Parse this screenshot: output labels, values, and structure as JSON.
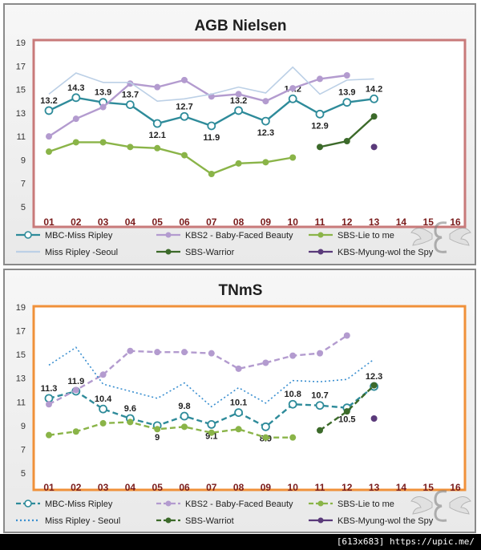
{
  "footer_text": "[613x683] https://upic.me/",
  "colors": {
    "top_frame": "#c87a7a",
    "bottom_frame": "#f0913a",
    "tick_label": "#7a1c1c"
  },
  "chart_data": [
    {
      "type": "line",
      "title": "AGB Nielsen",
      "categories": [
        "01",
        "02",
        "03",
        "04",
        "05",
        "06",
        "07",
        "08",
        "09",
        "10",
        "11",
        "12",
        "13",
        "14",
        "15",
        "16"
      ],
      "ylim": [
        5,
        19
      ],
      "yticks": [
        5,
        7,
        9,
        11,
        13,
        15,
        17,
        19
      ],
      "series": [
        {
          "name": "MBC-Miss Ripley",
          "color": "#2e8b9a",
          "style": "solid",
          "marker": "open-circle",
          "values": [
            13.2,
            14.3,
            13.9,
            13.7,
            12.1,
            12.7,
            11.9,
            13.2,
            12.3,
            14.2,
            12.9,
            13.9,
            14.2,
            null,
            null,
            null
          ],
          "labels": [
            "13.2",
            "14.3",
            "13.9",
            "13.7",
            "12.1",
            "12.7",
            "11.9",
            "13.2",
            "12.3",
            "14.2",
            "12.9",
            "13.9",
            "14.2",
            null,
            null,
            null
          ]
        },
        {
          "name": "KBS2 - Baby-Faced Beauty",
          "color": "#b39bcf",
          "style": "solid",
          "marker": "dot",
          "values": [
            11.0,
            12.5,
            13.5,
            15.5,
            15.2,
            15.8,
            14.4,
            14.6,
            14.0,
            15.1,
            15.9,
            16.2,
            null,
            null,
            null,
            null
          ]
        },
        {
          "name": "SBS-Lie to me",
          "color": "#8ab448",
          "style": "solid",
          "marker": "dot",
          "values": [
            9.7,
            10.5,
            10.5,
            10.1,
            10.0,
            9.4,
            7.8,
            8.7,
            8.8,
            9.2,
            null,
            null,
            null,
            null,
            null,
            null
          ]
        },
        {
          "name": "Miss Ripley -Seoul",
          "color": "#bcd0e6",
          "style": "solid",
          "marker": "none",
          "values": [
            14.6,
            16.4,
            15.6,
            15.6,
            14.0,
            14.2,
            14.6,
            15.2,
            14.7,
            16.9,
            14.6,
            15.8,
            15.9,
            null,
            null,
            null
          ]
        },
        {
          "name": "SBS-Warrior",
          "color": "#3c6a2a",
          "style": "solid",
          "marker": "dot",
          "values": [
            null,
            null,
            null,
            null,
            null,
            null,
            null,
            null,
            null,
            null,
            10.1,
            10.6,
            12.7,
            null,
            null,
            null
          ]
        },
        {
          "name": "KBS-Myung-wol the Spy",
          "color": "#5a3a7a",
          "style": "solid",
          "marker": "dot",
          "values": [
            null,
            null,
            null,
            null,
            null,
            null,
            null,
            null,
            null,
            null,
            null,
            null,
            10.1,
            null,
            null,
            null
          ]
        }
      ]
    },
    {
      "type": "line",
      "title": "TNmS",
      "categories": [
        "01",
        "02",
        "03",
        "04",
        "05",
        "06",
        "07",
        "08",
        "09",
        "10",
        "11",
        "12",
        "13",
        "14",
        "15",
        "16"
      ],
      "ylim": [
        5,
        19
      ],
      "yticks": [
        5,
        7,
        9,
        11,
        13,
        15,
        17,
        19
      ],
      "series": [
        {
          "name": "MBC-Miss Ripley",
          "color": "#2e8b9a",
          "style": "dashed",
          "marker": "open-circle",
          "values": [
            11.3,
            11.9,
            10.4,
            9.6,
            9.0,
            9.8,
            9.1,
            10.1,
            8.9,
            10.8,
            10.7,
            10.5,
            12.3,
            null,
            null,
            null
          ],
          "labels": [
            "11.3",
            "11.9",
            "10.4",
            "9.6",
            "9",
            "9.8",
            "9.1",
            "10.1",
            "8.9",
            "10.8",
            "10.7",
            "10.5",
            "12.3",
            null,
            null,
            null
          ]
        },
        {
          "name": "KBS2 - Baby-Faced Beauty",
          "color": "#b39bcf",
          "style": "dashed",
          "marker": "dot",
          "values": [
            10.8,
            12.0,
            13.3,
            15.3,
            15.2,
            15.2,
            15.1,
            13.8,
            14.3,
            14.9,
            15.1,
            16.6,
            null,
            null,
            null,
            null
          ]
        },
        {
          "name": "SBS-Lie to me",
          "color": "#8ab448",
          "style": "dashed",
          "marker": "dot",
          "values": [
            8.2,
            8.5,
            9.2,
            9.3,
            8.7,
            8.9,
            8.4,
            8.7,
            8.0,
            8.0,
            null,
            null,
            null,
            null,
            null,
            null
          ]
        },
        {
          "name": "Miss Ripley - Seoul",
          "color": "#3a8fd0",
          "style": "dotted",
          "marker": "none",
          "values": [
            14.1,
            15.6,
            12.5,
            11.9,
            11.3,
            12.6,
            10.6,
            12.2,
            10.9,
            12.8,
            12.7,
            12.9,
            14.6,
            null,
            null,
            null
          ]
        },
        {
          "name": "SBS-Warriot",
          "color": "#3c6a2a",
          "style": "dashed",
          "marker": "dot",
          "values": [
            null,
            null,
            null,
            null,
            null,
            null,
            null,
            null,
            null,
            null,
            8.6,
            10.2,
            12.4,
            null,
            null,
            null
          ]
        },
        {
          "name": "KBS-Myung-wol the Spy",
          "color": "#5a3a7a",
          "style": "solid",
          "marker": "dot",
          "values": [
            null,
            null,
            null,
            null,
            null,
            null,
            null,
            null,
            null,
            null,
            null,
            null,
            9.6,
            null,
            null,
            null
          ]
        }
      ]
    }
  ]
}
